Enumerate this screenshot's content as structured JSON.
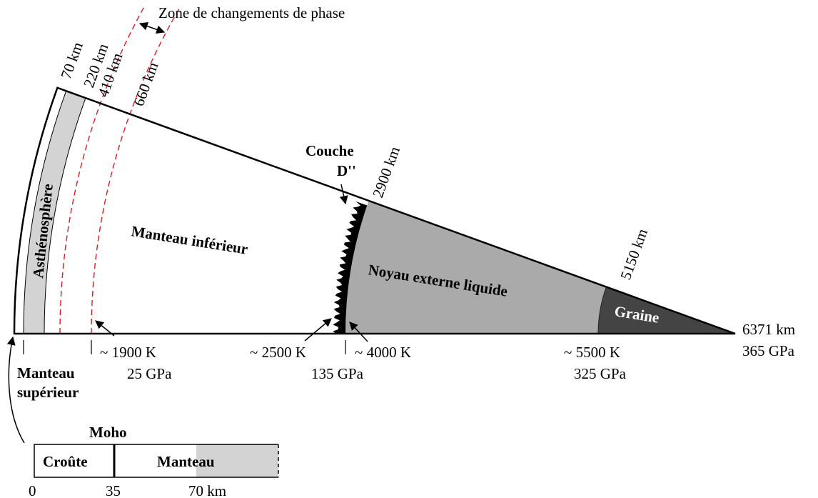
{
  "title": "Zone de changements de phase",
  "depths": {
    "d70": "70 km",
    "d220": "220 km",
    "d410": "410 km",
    "d660": "660 km",
    "d2900": "2900 km",
    "d5150": "5150 km",
    "d6371": "6371 km"
  },
  "layers": {
    "asthenosphere": "Asthénosphère",
    "lower_mantle": "Manteau inférieur",
    "d_layer_1": "Couche",
    "d_layer_2": "D''",
    "outer_core": "Noyau externe liquide",
    "inner_core": "Graine",
    "upper_mantle_1": "Manteau",
    "upper_mantle_2": "supérieur"
  },
  "conditions": {
    "t1900": "~ 1900 K",
    "p25": "25 GPa",
    "t2500": "~ 2500 K",
    "p135": "135 GPa",
    "t4000": "~ 4000 K",
    "t5500": "~ 5500 K",
    "p325": "325 GPa",
    "p365": "365 GPa"
  },
  "inset": {
    "moho": "Moho",
    "crust": "Croûte",
    "mantle": "Manteau",
    "tick0": "0",
    "tick35": "35",
    "tick70": "70 km"
  }
}
